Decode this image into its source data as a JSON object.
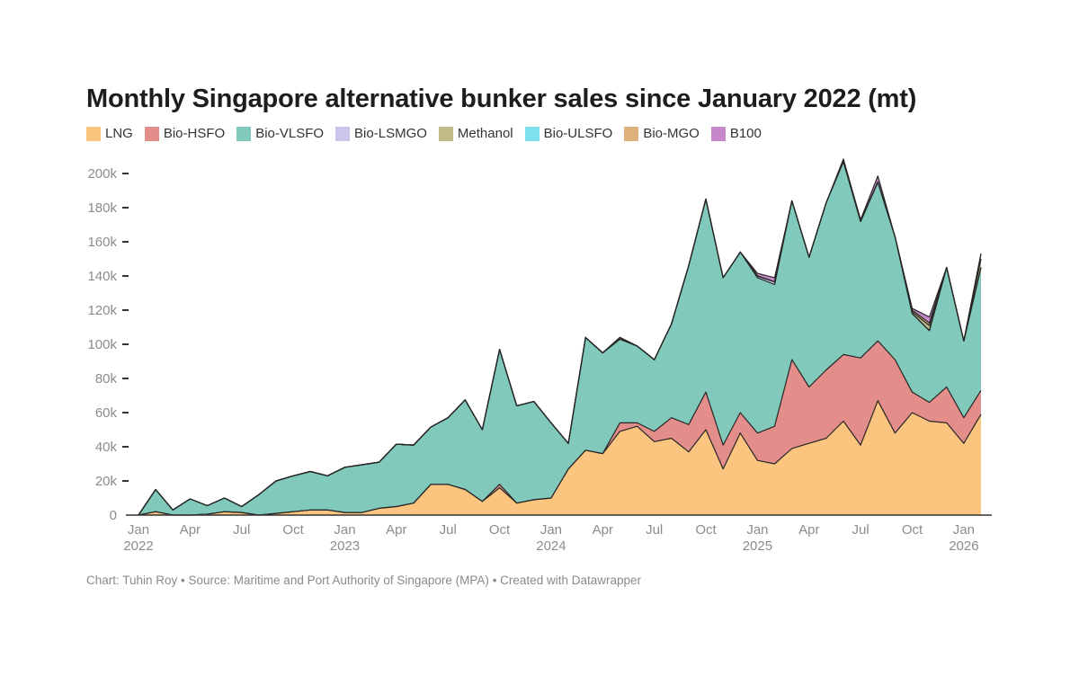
{
  "footer": {
    "credit": "Chart: Tuhin Roy",
    "source": "Source: Maritime and Port Authority of Singapore (MPA)",
    "tool": "Created with Datawrapper",
    "separator": " • "
  },
  "chart_data": {
    "type": "area",
    "stacked": true,
    "title": "Monthly Singapore alternative bunker sales since January 2022 (mt)",
    "xlabel": "",
    "ylabel": "",
    "ylim": [
      0,
      210000
    ],
    "y_ticks": [
      0,
      20000,
      40000,
      60000,
      80000,
      100000,
      120000,
      140000,
      160000,
      180000,
      200000
    ],
    "y_tick_labels": [
      "0",
      "20k",
      "40k",
      "60k",
      "80k",
      "100k",
      "120k",
      "140k",
      "160k",
      "180k",
      "200k"
    ],
    "x_ticks": [
      {
        "month": 0,
        "label": "Jan",
        "year": "2022"
      },
      {
        "month": 3,
        "label": "Apr",
        "year": ""
      },
      {
        "month": 6,
        "label": "Jul",
        "year": ""
      },
      {
        "month": 9,
        "label": "Oct",
        "year": ""
      },
      {
        "month": 12,
        "label": "Jan",
        "year": "2023"
      },
      {
        "month": 15,
        "label": "Apr",
        "year": ""
      },
      {
        "month": 18,
        "label": "Jul",
        "year": ""
      },
      {
        "month": 21,
        "label": "Oct",
        "year": ""
      },
      {
        "month": 24,
        "label": "Jan",
        "year": "2024"
      },
      {
        "month": 27,
        "label": "Apr",
        "year": ""
      },
      {
        "month": 30,
        "label": "Jul",
        "year": ""
      },
      {
        "month": 33,
        "label": "Oct",
        "year": ""
      },
      {
        "month": 36,
        "label": "Jan",
        "year": "2025"
      },
      {
        "month": 39,
        "label": "Apr",
        "year": ""
      },
      {
        "month": 42,
        "label": "Jul",
        "year": ""
      },
      {
        "month": 45,
        "label": "Oct",
        "year": ""
      },
      {
        "month": 48,
        "label": "Jan",
        "year": "2026"
      }
    ],
    "x": [
      "2022-01",
      "2022-02",
      "2022-03",
      "2022-04",
      "2022-05",
      "2022-06",
      "2022-07",
      "2022-08",
      "2022-09",
      "2022-10",
      "2022-11",
      "2022-12",
      "2023-01",
      "2023-02",
      "2023-03",
      "2023-04",
      "2023-05",
      "2023-06",
      "2023-07",
      "2023-08",
      "2023-09",
      "2023-10",
      "2023-11",
      "2023-12",
      "2024-01",
      "2024-02",
      "2024-03",
      "2024-04",
      "2024-05",
      "2024-06",
      "2024-07",
      "2024-08",
      "2024-09",
      "2024-10",
      "2024-11",
      "2024-12",
      "2025-01",
      "2025-02",
      "2025-03",
      "2025-04",
      "2025-05",
      "2025-06",
      "2025-07",
      "2025-08",
      "2025-09",
      "2025-10",
      "2025-11",
      "2025-12",
      "2026-01",
      "2026-02"
    ],
    "series": [
      {
        "name": "LNG",
        "color": "#fbc47f",
        "values": [
          0,
          2000,
          0,
          0,
          500,
          2000,
          1500,
          0,
          1000,
          2000,
          3000,
          3000,
          1500,
          1500,
          4000,
          5000,
          7000,
          18000,
          18000,
          15000,
          8000,
          16000,
          7000,
          9000,
          10000,
          27000,
          38000,
          36000,
          49000,
          52000,
          43000,
          45000,
          37000,
          50000,
          27000,
          48000,
          32000,
          30000,
          39000,
          42000,
          45000,
          55000,
          41000,
          67000,
          48000,
          60000,
          55000,
          54000,
          42000,
          59000
        ]
      },
      {
        "name": "Bio-HSFO",
        "color": "#e48e8b",
        "values": [
          0,
          0,
          0,
          0,
          0,
          0,
          0,
          0,
          0,
          0,
          0,
          0,
          0,
          0,
          0,
          0,
          0,
          0,
          0,
          0,
          0,
          2000,
          0,
          0,
          0,
          0,
          0,
          0,
          5000,
          2000,
          6000,
          12000,
          16000,
          22000,
          14000,
          12000,
          16000,
          22000,
          52000,
          33000,
          40000,
          39000,
          51000,
          35000,
          43000,
          12000,
          11000,
          21000,
          15000,
          14000
        ]
      },
      {
        "name": "Bio-VLSFO",
        "color": "#81c9bb",
        "values": [
          0,
          13000,
          3000,
          9500,
          5000,
          8000,
          3500,
          12000,
          19000,
          21000,
          22500,
          20000,
          26500,
          28000,
          27000,
          36500,
          34000,
          33500,
          39000,
          52500,
          42000,
          79000,
          57000,
          57500,
          44000,
          15000,
          66000,
          59000,
          49000,
          45000,
          42000,
          55000,
          93000,
          113000,
          98000,
          94000,
          91000,
          83000,
          93000,
          76000,
          98000,
          113000,
          80000,
          93000,
          72000,
          46000,
          42000,
          70000,
          45000,
          72000
        ]
      },
      {
        "name": "Bio-LSMGO",
        "color": "#c9c6e9",
        "values": [
          0,
          0,
          0,
          0,
          0,
          0,
          0,
          0,
          0,
          0,
          0,
          0,
          0,
          0,
          0,
          0,
          0,
          0,
          0,
          0,
          0,
          0,
          0,
          0,
          0,
          0,
          0,
          0,
          0,
          0,
          0,
          0,
          0,
          0,
          0,
          0,
          1000,
          1500,
          0,
          0,
          0,
          0,
          0,
          0,
          0,
          0,
          0,
          0,
          0,
          0
        ]
      },
      {
        "name": "Methanol",
        "color": "#c2ba85",
        "values": [
          0,
          0,
          0,
          0,
          0,
          0,
          0,
          0,
          0,
          0,
          0,
          0,
          0,
          0,
          0,
          0,
          0,
          0,
          0,
          0,
          0,
          0,
          0,
          0,
          0,
          0,
          0,
          0,
          1000,
          0,
          0,
          0,
          0,
          0,
          0,
          0,
          0,
          0,
          0,
          0,
          0,
          0,
          0,
          0,
          0,
          1000,
          3000,
          0,
          0,
          5000
        ]
      },
      {
        "name": "Bio-ULSFO",
        "color": "#7fe1ee",
        "values": [
          0,
          0,
          0,
          0,
          0,
          0,
          0,
          0,
          0,
          0,
          0,
          0,
          0,
          0,
          0,
          0,
          0,
          0,
          0,
          0,
          0,
          0,
          0,
          0,
          0,
          0,
          0,
          0,
          0,
          0,
          0,
          0,
          0,
          0,
          0,
          0,
          0,
          0,
          0,
          0,
          0,
          0,
          0,
          0,
          0,
          0,
          0,
          0,
          0,
          0
        ]
      },
      {
        "name": "Bio-MGO",
        "color": "#dfb07c",
        "values": [
          0,
          0,
          0,
          0,
          0,
          0,
          0,
          0,
          0,
          0,
          0,
          0,
          0,
          0,
          0,
          0,
          0,
          0,
          0,
          0,
          0,
          0,
          0,
          0,
          0,
          0,
          0,
          0,
          0,
          0,
          0,
          0,
          0,
          0,
          0,
          0,
          0,
          0,
          0,
          0,
          0,
          0,
          0,
          0,
          0,
          1000,
          1500,
          0,
          0,
          3000
        ]
      },
      {
        "name": "B100",
        "color": "#c688c8",
        "values": [
          0,
          0,
          0,
          0,
          0,
          0,
          0,
          0,
          0,
          0,
          0,
          0,
          0,
          0,
          0,
          0,
          0,
          0,
          0,
          0,
          0,
          0,
          0,
          0,
          0,
          0,
          0,
          0,
          0,
          0,
          0,
          0,
          0,
          0,
          0,
          0,
          1500,
          2500,
          0,
          0,
          0,
          1500,
          1000,
          3500,
          0,
          1000,
          3500,
          0,
          0,
          0
        ]
      }
    ]
  }
}
